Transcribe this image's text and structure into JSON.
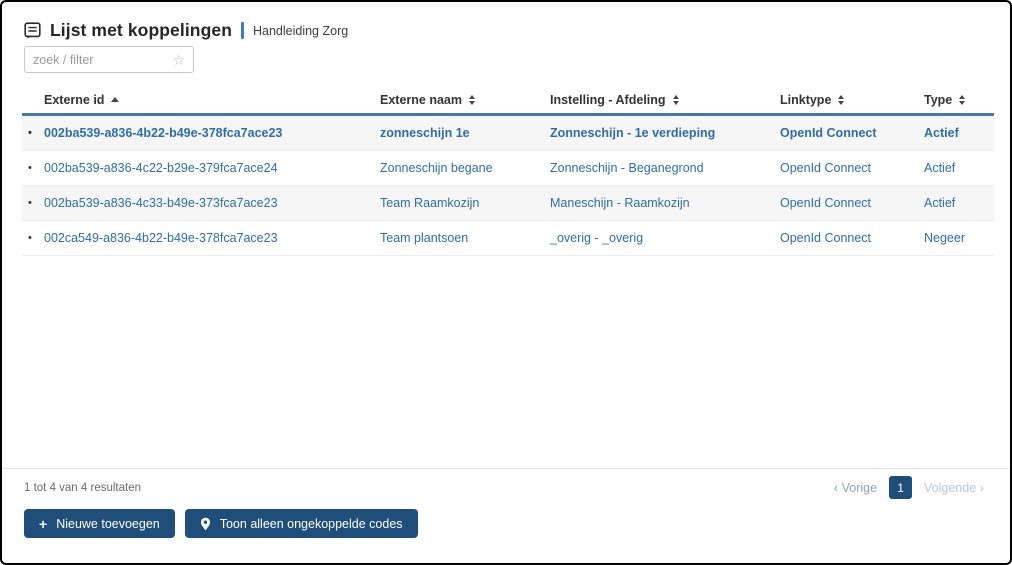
{
  "header": {
    "title": "Lijst met koppelingen",
    "subtitle": "Handleiding Zorg",
    "search_placeholder": "zoek / filter",
    "icons": {
      "title_icon": "note-list-icon",
      "search_icon": "star-icon"
    }
  },
  "table": {
    "columns": [
      {
        "label": "Externe id",
        "sort": "asc"
      },
      {
        "label": "Externe naam",
        "sort": "both"
      },
      {
        "label": "Instelling - Afdeling",
        "sort": "both"
      },
      {
        "label": "Linktype",
        "sort": "both"
      },
      {
        "label": "Type",
        "sort": "both"
      }
    ],
    "rows": [
      {
        "externe_id": "002ba539-a836-4b22-b49e-378fca7ace23",
        "externe_naam": "zonneschijn 1e",
        "instelling_afdeling": "Zonneschijn - 1e verdieping",
        "linktype": "OpenId Connect",
        "type": "Actief",
        "emphasis": true
      },
      {
        "externe_id": "002ba539-a836-4c22-b29e-379fca7ace24",
        "externe_naam": "Zonneschijn begane",
        "instelling_afdeling": "Zonneschijn - Beganegrond",
        "linktype": "OpenId Connect",
        "type": "Actief",
        "emphasis": false
      },
      {
        "externe_id": "002ba539-a836-4c33-b49e-373fca7ace23",
        "externe_naam": "Team Raamkozijn",
        "instelling_afdeling": "Maneschijn - Raamkozijn",
        "linktype": "OpenId Connect",
        "type": "Actief",
        "emphasis": false
      },
      {
        "externe_id": "002ca549-a836-4b22-b49e-378fca7ace23",
        "externe_naam": "Team plantsoen",
        "instelling_afdeling": "_overig - _overig",
        "linktype": "OpenId Connect",
        "type": "Negeer",
        "emphasis": false
      }
    ]
  },
  "footer": {
    "results_text": "1 tot 4 van 4 resultaten",
    "pagination": {
      "prev_label": "Vorige",
      "page": "1",
      "next_label": "Volgende",
      "prev_arrow": "‹",
      "next_arrow": "›"
    },
    "buttons": [
      {
        "label": "Nieuwe toevoegen",
        "icon": "plus-icon",
        "plus_glyph": "+"
      },
      {
        "label": "Toon alleen ongekoppelde codes",
        "icon": "map-pin-icon"
      }
    ]
  },
  "colors": {
    "accent_navy": "#1e4e79",
    "link_blue": "#2e6da4",
    "header_underline": "#4679a8",
    "row_stripe": "#f6f6f6",
    "title_separator": "#3e7cbf"
  }
}
